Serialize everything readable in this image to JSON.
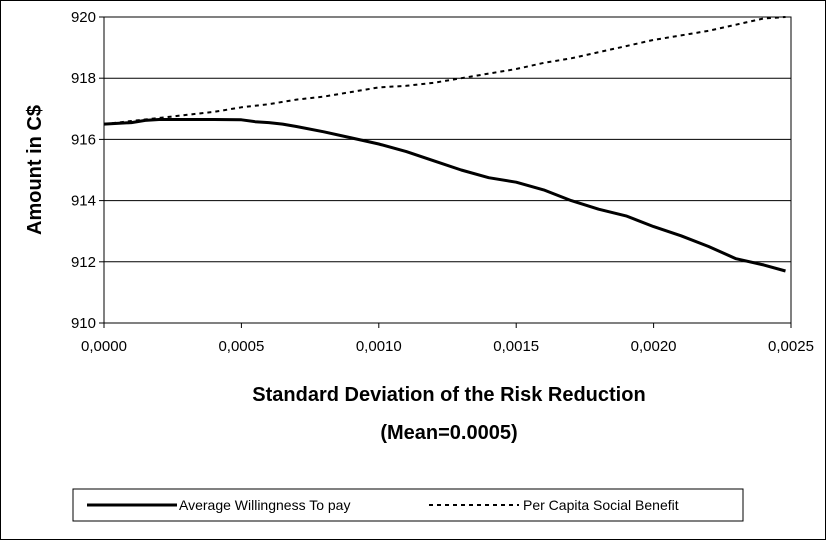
{
  "chart_data": {
    "type": "line",
    "xlabel": "Standard Deviation of the Risk Reduction",
    "xlabel_line2": "(Mean=0.0005)",
    "ylabel": "Amount in C$",
    "xlim": [
      0,
      0.0025
    ],
    "ylim": [
      910,
      920
    ],
    "x_ticks": [
      0,
      0.0005,
      0.001,
      0.0015,
      0.002,
      0.0025
    ],
    "x_tick_labels": [
      "0,0000",
      "0,0005",
      "0,0010",
      "0,0015",
      "0,0020",
      "0,0025"
    ],
    "y_ticks": [
      910,
      912,
      914,
      916,
      918,
      920
    ],
    "y_tick_labels": [
      "910",
      "912",
      "914",
      "916",
      "918",
      "920"
    ],
    "grid": "horizontal",
    "legend_position": "bottom",
    "series": [
      {
        "name": "Average Willingness To pay",
        "style": "solid",
        "color": "#000000",
        "x": [
          0,
          0.0001,
          0.00015,
          0.0002,
          0.0003,
          0.0004,
          0.0005,
          0.00055,
          0.0006,
          0.00065,
          0.0007,
          0.0008,
          0.0009,
          0.001,
          0.0011,
          0.0012,
          0.0013,
          0.0014,
          0.0015,
          0.0016,
          0.0017,
          0.0018,
          0.0019,
          0.002,
          0.0021,
          0.0022,
          0.0023,
          0.0024,
          0.00248
        ],
        "y": [
          916.5,
          916.55,
          916.62,
          916.65,
          916.65,
          916.65,
          916.64,
          916.58,
          916.55,
          916.5,
          916.42,
          916.25,
          916.05,
          915.85,
          915.6,
          915.3,
          915.0,
          914.75,
          914.6,
          914.35,
          914.0,
          913.72,
          913.5,
          913.15,
          912.85,
          912.5,
          912.1,
          911.9,
          911.7
        ]
      },
      {
        "name": "Per Capita Social Benefit",
        "style": "dashed",
        "color": "#000000",
        "x": [
          0,
          0.0001,
          0.0002,
          0.0003,
          0.0004,
          0.0005,
          0.0006,
          0.0007,
          0.0008,
          0.0009,
          0.001,
          0.0011,
          0.0012,
          0.0013,
          0.0014,
          0.0015,
          0.0016,
          0.0017,
          0.0018,
          0.0019,
          0.002,
          0.0021,
          0.0022,
          0.0023,
          0.0024,
          0.00248
        ],
        "y": [
          916.5,
          916.6,
          916.7,
          916.8,
          916.9,
          917.05,
          917.15,
          917.3,
          917.4,
          917.55,
          917.7,
          917.75,
          917.85,
          918.0,
          918.15,
          918.3,
          918.5,
          918.65,
          918.85,
          919.05,
          919.25,
          919.4,
          919.55,
          919.75,
          919.95,
          920.0
        ]
      }
    ]
  }
}
